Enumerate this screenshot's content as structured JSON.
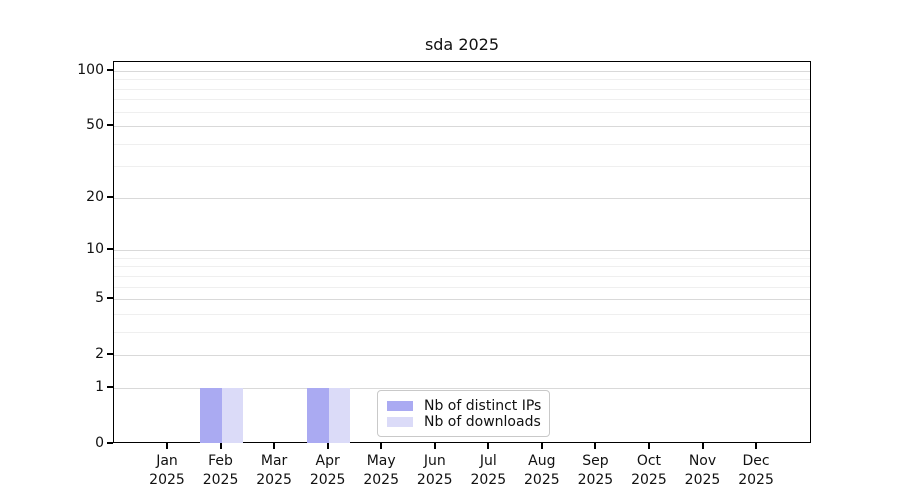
{
  "chart_data": {
    "type": "bar",
    "title": "sda 2025",
    "categories": [
      "Jan 2025",
      "Feb 2025",
      "Mar 2025",
      "Apr 2025",
      "May 2025",
      "Jun 2025",
      "Jul 2025",
      "Aug 2025",
      "Sep 2025",
      "Oct 2025",
      "Nov 2025",
      "Dec 2025"
    ],
    "series": [
      {
        "name": "Nb of distinct IPs",
        "color": "#aaaaf2",
        "values": [
          0,
          1,
          0,
          1,
          0,
          0,
          0,
          0,
          0,
          0,
          0,
          0
        ]
      },
      {
        "name": "Nb of downloads",
        "color": "#dbdbf8",
        "values": [
          0,
          1,
          0,
          1,
          0,
          0,
          0,
          0,
          0,
          0,
          0,
          0
        ]
      }
    ],
    "xlabel": "",
    "ylabel": "",
    "y_axis": {
      "scale": "log1p",
      "ticks": [
        0,
        1,
        2,
        5,
        10,
        20,
        50,
        100
      ],
      "minor_gridlines": [
        3,
        4,
        6,
        7,
        8,
        9,
        30,
        40,
        60,
        70,
        80,
        90
      ],
      "ylim": [
        0,
        112
      ]
    },
    "grid": {
      "horizontal": true,
      "major_color": "#d9d9d9",
      "minor_color": "#efefef"
    },
    "legend": {
      "position": "bottom-center",
      "border_color": "#c9c9c9",
      "entries": [
        "Nb of distinct IPs",
        "Nb of downloads"
      ]
    }
  }
}
